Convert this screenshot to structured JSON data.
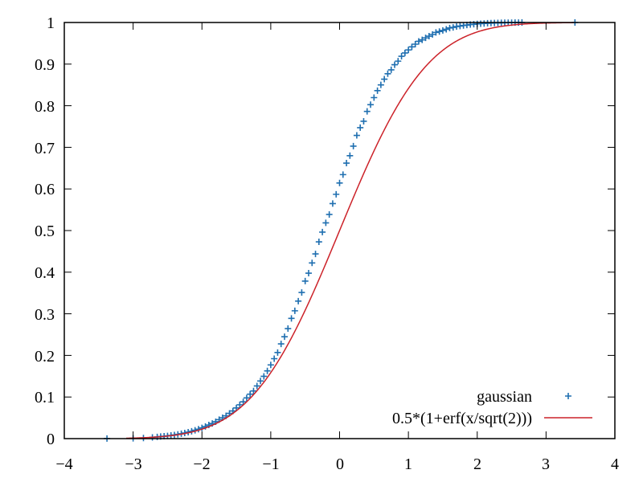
{
  "chart_data": {
    "type": "scatter",
    "xlim": [
      -4,
      4
    ],
    "ylim": [
      0,
      1
    ],
    "x_ticks": [
      -4,
      -3,
      -2,
      -1,
      0,
      1,
      2,
      3,
      4
    ],
    "y_ticks": [
      0,
      0.1,
      0.2,
      0.3,
      0.4,
      0.5,
      0.6,
      0.7,
      0.8,
      0.9,
      1
    ],
    "x_tick_labels": [
      "−4",
      "−3",
      "−2",
      "−1",
      "0",
      "1",
      "2",
      "3",
      "4"
    ],
    "y_tick_labels": [
      "0",
      "0.1",
      "0.2",
      "0.3",
      "0.4",
      "0.5",
      "0.6",
      "0.7",
      "0.8",
      "0.9",
      "1"
    ],
    "grid": false,
    "legend_position": "bottom-right",
    "series": [
      {
        "name": "gaussian",
        "kind": "points",
        "marker": "+",
        "color": "#1f6fb0",
        "x": [
          -3.38,
          -3.0,
          -2.85,
          -2.72,
          -2.65,
          -2.6,
          -2.55,
          -2.5,
          -2.45,
          -2.4,
          -2.35,
          -2.3,
          -2.25,
          -2.2,
          -2.15,
          -2.1,
          -2.05,
          -2.0,
          -1.95,
          -1.9,
          -1.85,
          -1.8,
          -1.75,
          -1.7,
          -1.65,
          -1.6,
          -1.55,
          -1.5,
          -1.45,
          -1.4,
          -1.35,
          -1.3,
          -1.25,
          -1.2,
          -1.15,
          -1.1,
          -1.05,
          -1.0,
          -0.95,
          -0.9,
          -0.85,
          -0.8,
          -0.75,
          -0.7,
          -0.65,
          -0.6,
          -0.55,
          -0.5,
          -0.45,
          -0.4,
          -0.35,
          -0.3,
          -0.25,
          -0.2,
          -0.15,
          -0.1,
          -0.05,
          0.0,
          0.05,
          0.1,
          0.15,
          0.2,
          0.25,
          0.3,
          0.35,
          0.4,
          0.45,
          0.5,
          0.55,
          0.6,
          0.65,
          0.7,
          0.75,
          0.8,
          0.85,
          0.9,
          0.95,
          1.0,
          1.05,
          1.1,
          1.15,
          1.2,
          1.25,
          1.3,
          1.35,
          1.4,
          1.45,
          1.5,
          1.55,
          1.6,
          1.65,
          1.7,
          1.75,
          1.8,
          1.85,
          1.9,
          1.95,
          2.0,
          2.05,
          2.1,
          2.15,
          2.2,
          2.25,
          2.3,
          2.35,
          2.4,
          2.45,
          2.5,
          2.55,
          2.6,
          2.65,
          3.42
        ],
        "y": [
          0.0003,
          0.0008,
          0.0015,
          0.003,
          0.004,
          0.005,
          0.0057,
          0.0066,
          0.0077,
          0.0088,
          0.0102,
          0.0118,
          0.0135,
          0.0155,
          0.0176,
          0.0201,
          0.0226,
          0.0258,
          0.0291,
          0.0327,
          0.0364,
          0.0406,
          0.0456,
          0.0502,
          0.0548,
          0.0606,
          0.0664,
          0.0737,
          0.0813,
          0.0884,
          0.0978,
          0.1068,
          0.1145,
          0.1265,
          0.1385,
          0.1497,
          0.1627,
          0.1771,
          0.1921,
          0.2069,
          0.2276,
          0.2449,
          0.2644,
          0.2889,
          0.3072,
          0.3304,
          0.3512,
          0.3785,
          0.3976,
          0.4222,
          0.4438,
          0.4729,
          0.4963,
          0.5185,
          0.5387,
          0.5648,
          0.5871,
          0.6143,
          0.6344,
          0.6621,
          0.6799,
          0.7029,
          0.7287,
          0.7473,
          0.7626,
          0.7864,
          0.8025,
          0.8195,
          0.8362,
          0.8501,
          0.8638,
          0.8769,
          0.8863,
          0.8985,
          0.9071,
          0.9188,
          0.9268,
          0.9341,
          0.9414,
          0.9479,
          0.9547,
          0.9583,
          0.9631,
          0.9671,
          0.9713,
          0.9761,
          0.9783,
          0.9809,
          0.9837,
          0.9868,
          0.9882,
          0.9903,
          0.9915,
          0.9928,
          0.9939,
          0.9951,
          0.9958,
          0.9966,
          0.9971,
          0.9976,
          0.9982,
          0.9985,
          0.9988,
          0.999,
          0.9992,
          0.9994,
          0.9995,
          0.9996,
          0.9997,
          0.9998,
          0.9999,
          1.0
        ]
      },
      {
        "name": "0.5*(1+erf(x/sqrt(2)))",
        "kind": "line",
        "color": "#cc2229",
        "function": "normal_cdf"
      }
    ]
  }
}
